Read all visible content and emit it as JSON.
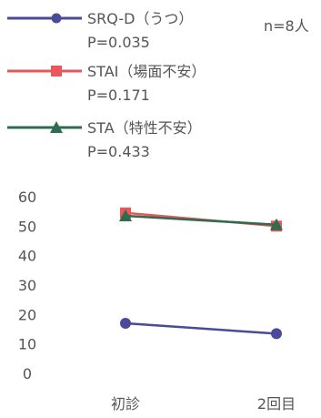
{
  "chart_data": {
    "type": "line",
    "note": "n=8人",
    "categories": [
      "初診",
      "2回目"
    ],
    "series": [
      {
        "name": "SRQ-D（うつ）",
        "p_text": "P=0.035",
        "values": [
          17,
          13.5
        ],
        "color": "#4a4a9a",
        "marker": "circle"
      },
      {
        "name": "STAI（場面不安）",
        "p_text": "P=0.171",
        "values": [
          54.5,
          50
        ],
        "color": "#e8575a",
        "marker": "square"
      },
      {
        "name": "STA（特性不安）",
        "p_text": "P=0.433",
        "values": [
          53.5,
          50.5
        ],
        "color": "#2f6b4e",
        "marker": "triangle"
      }
    ],
    "y_ticks": [
      "60",
      "50",
      "40",
      "30",
      "20",
      "10",
      "0"
    ],
    "ylim": [
      0,
      60
    ],
    "grid": false,
    "legend_position": "top-left"
  }
}
